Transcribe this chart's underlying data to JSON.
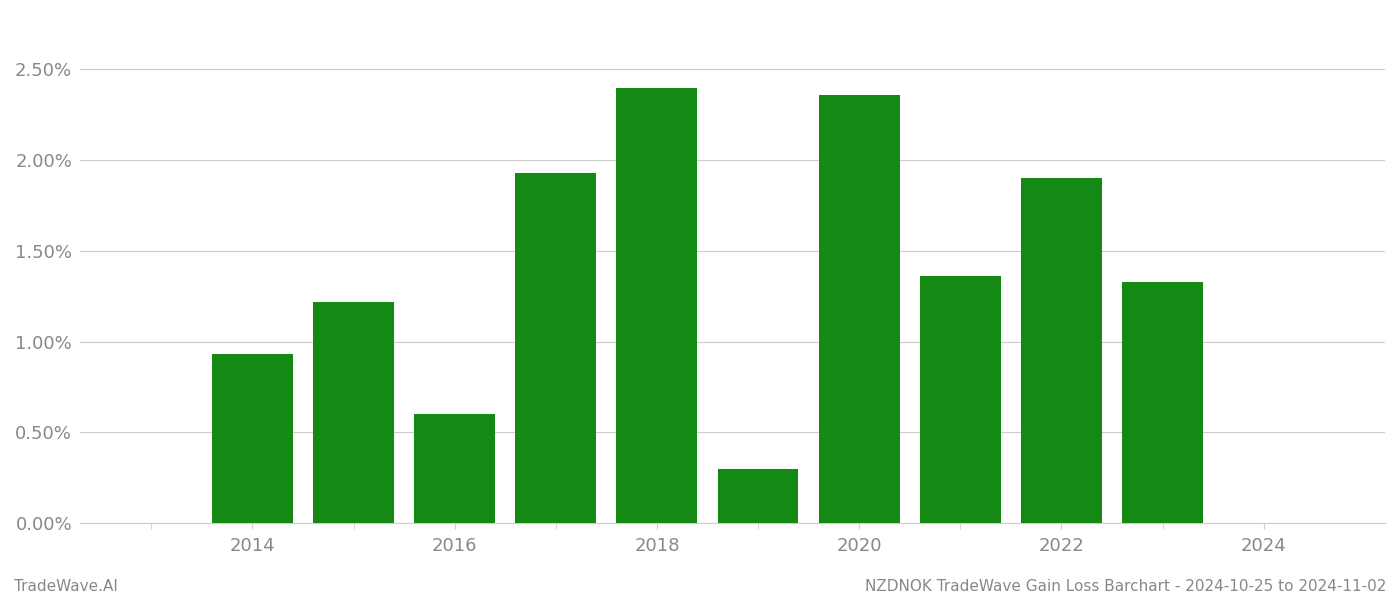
{
  "bar_color": "#148a14",
  "title": "NZDNOK TradeWave Gain Loss Barchart - 2024-10-25 to 2024-11-02",
  "footer_left": "TradeWave.AI",
  "ylim": [
    0,
    0.028
  ],
  "yticks": [
    0.0,
    0.005,
    0.01,
    0.015,
    0.02,
    0.025
  ],
  "ytick_labels": [
    "0.00%",
    "0.50%",
    "1.00%",
    "1.50%",
    "2.00%",
    "2.50%"
  ],
  "background_color": "#ffffff",
  "grid_color": "#cccccc",
  "tick_label_color": "#888888",
  "bar_years": [
    2014,
    2015,
    2016,
    2017,
    2018,
    2019,
    2020,
    2021,
    2022,
    2023
  ],
  "bar_values": [
    0.0093,
    0.0122,
    0.006,
    0.0193,
    0.024,
    0.003,
    0.0236,
    0.0136,
    0.019,
    0.0133
  ],
  "xlim": [
    2012.3,
    2025.2
  ],
  "xticks": [
    2014,
    2016,
    2018,
    2020,
    2022,
    2024
  ],
  "bar_width": 0.8,
  "font_family": "DejaVu Sans",
  "tick_fontsize": 13,
  "footer_fontsize": 11
}
